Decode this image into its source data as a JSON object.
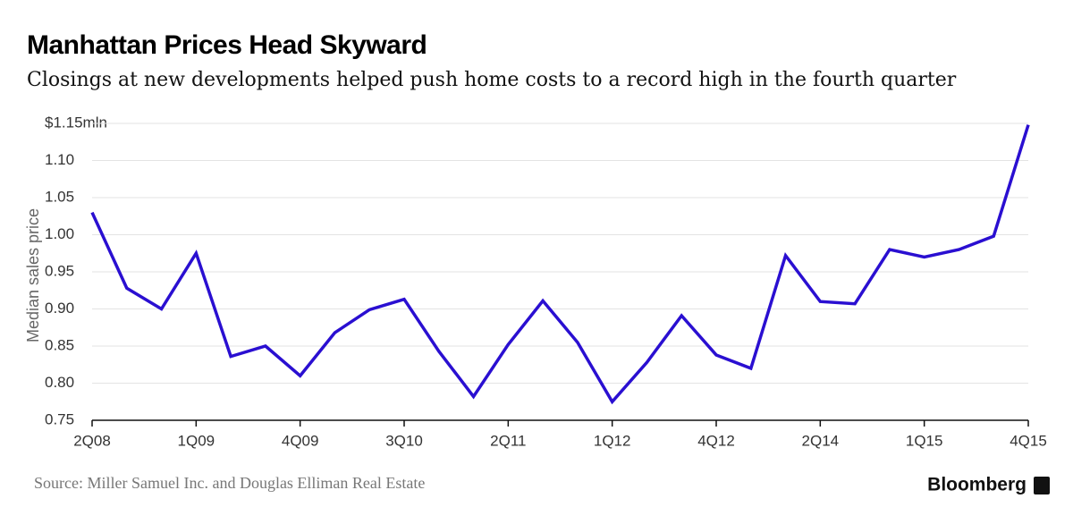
{
  "chart_data": {
    "type": "line",
    "title": "Manhattan Prices Head Skyward",
    "subtitle": "Closings at new developments helped push home costs to a record high in the fourth quarter",
    "y_label": "Median sales price",
    "source": "Source: Miller Samuel Inc. and Douglas Elliman Real Estate",
    "brand": "Bloomberg",
    "categories": [
      "2Q08",
      null,
      null,
      "1Q09",
      null,
      null,
      "4Q09",
      null,
      null,
      "3Q10",
      null,
      null,
      "2Q11",
      null,
      null,
      "1Q12",
      null,
      null,
      "4Q12",
      null,
      null,
      "2Q14",
      null,
      null,
      "1Q15",
      null,
      null,
      "4Q15"
    ],
    "series": [
      {
        "name": "Median sales price",
        "color": "#2a0fd1",
        "values": [
          1.03,
          0.928,
          0.9,
          0.975,
          0.836,
          0.85,
          0.81,
          0.868,
          0.899,
          0.913,
          0.843,
          0.782,
          0.852,
          0.911,
          0.855,
          0.775,
          0.828,
          0.891,
          0.838,
          0.82,
          0.972,
          0.91,
          0.907,
          0.98,
          0.97,
          0.98,
          0.998,
          1.148
        ]
      }
    ],
    "ylim": [
      0.75,
      1.15
    ],
    "yticks": [
      0.75,
      {
        "value": 0.8,
        "label": "0.80"
      },
      0.85,
      {
        "value": 0.9,
        "label": "0.90"
      },
      0.95,
      {
        "value": 1.0,
        "label": "1.00"
      },
      1.05,
      {
        "value": 1.1,
        "label": "1.10"
      },
      {
        "value": 1.15,
        "label": "$1.15mln"
      }
    ],
    "grid": true
  }
}
